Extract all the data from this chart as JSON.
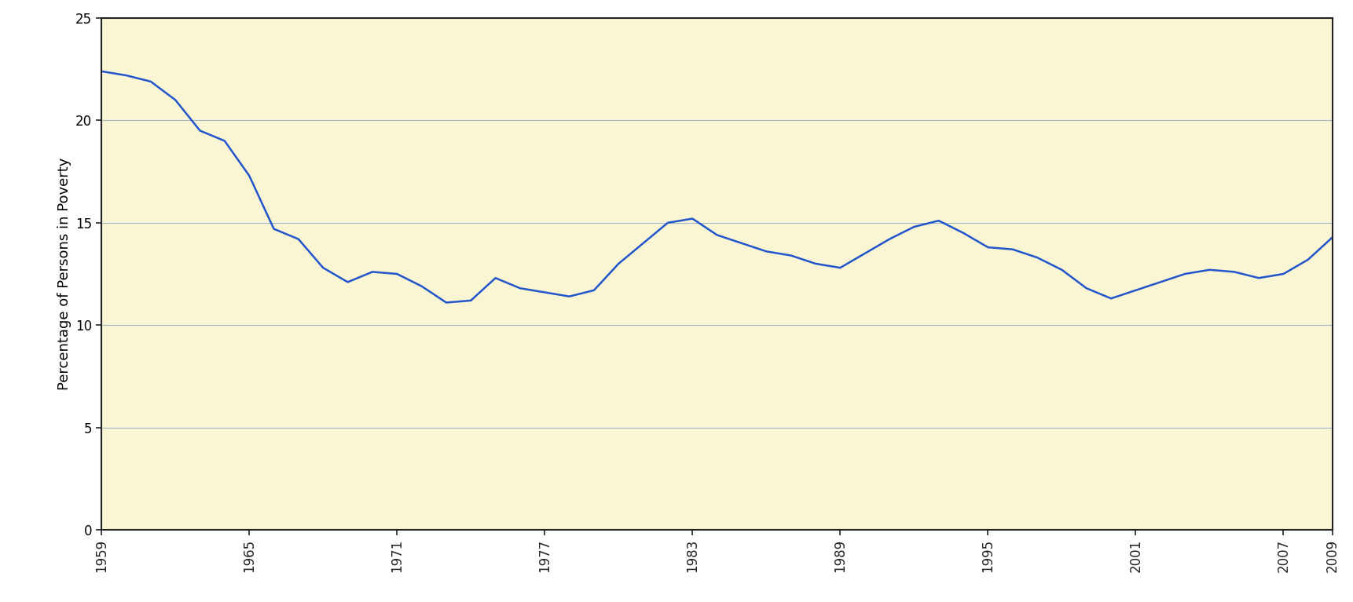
{
  "years": [
    1959,
    1960,
    1961,
    1962,
    1963,
    1964,
    1965,
    1966,
    1967,
    1968,
    1969,
    1970,
    1971,
    1972,
    1973,
    1974,
    1975,
    1976,
    1977,
    1978,
    1979,
    1980,
    1981,
    1982,
    1983,
    1984,
    1985,
    1986,
    1987,
    1988,
    1989,
    1990,
    1991,
    1992,
    1993,
    1994,
    1995,
    1996,
    1997,
    1998,
    1999,
    2000,
    2001,
    2002,
    2003,
    2004,
    2005,
    2006,
    2007,
    2008,
    2009
  ],
  "values": [
    22.4,
    22.2,
    21.9,
    21.0,
    19.5,
    19.0,
    17.3,
    14.7,
    14.2,
    12.8,
    12.1,
    12.6,
    12.5,
    11.9,
    11.1,
    11.2,
    12.3,
    11.8,
    11.6,
    11.4,
    11.7,
    13.0,
    14.0,
    15.0,
    15.2,
    14.4,
    14.0,
    13.6,
    13.4,
    13.0,
    12.8,
    13.5,
    14.2,
    14.8,
    15.1,
    14.5,
    13.8,
    13.7,
    13.3,
    12.7,
    11.8,
    11.3,
    11.7,
    12.1,
    12.5,
    12.7,
    12.6,
    12.3,
    12.5,
    13.2,
    14.3
  ],
  "line_color": "#2255cc",
  "bg_color": "#faf5d3",
  "fig_bg_color": "#ffffff",
  "grid_color": "#a0b8cc",
  "spine_color": "#222222",
  "ylabel": "Percentage of Persons in Poverty",
  "ylim": [
    0,
    25
  ],
  "yticks": [
    0,
    5,
    10,
    15,
    20,
    25
  ],
  "xtick_years": [
    1959,
    1965,
    1971,
    1977,
    1983,
    1989,
    1995,
    2001,
    2007,
    2009
  ],
  "axis_label_fontsize": 13,
  "tick_fontsize": 12,
  "line_width": 1.8
}
